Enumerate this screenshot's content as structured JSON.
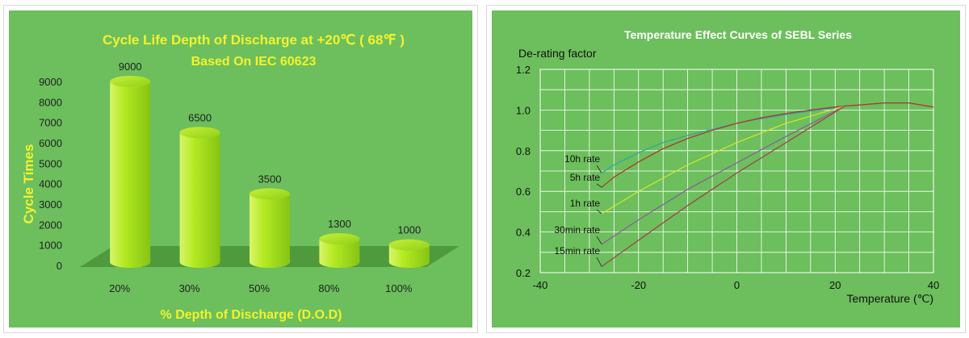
{
  "colors": {
    "panel_bg": "#6cbf5c",
    "left_title": "#f2f230",
    "right_title": "#ffffff",
    "bar": "#a4e01c",
    "floor": "#4f9a3c",
    "text": "#222222"
  },
  "chart_data": [
    {
      "type": "bar",
      "title": "Cycle Life Depth of Discharge at +20℃ ( 68℉ )",
      "subtitle": "Based On IEC 60623",
      "xlabel": "% Depth of Discharge (D.O.D)",
      "ylabel": "Cycle Times",
      "categories": [
        "20%",
        "30%",
        "50%",
        "80%",
        "100%"
      ],
      "values": [
        9000,
        6500,
        3500,
        1300,
        1000
      ],
      "value_labels": [
        "9000",
        "6500",
        "3500",
        "1300",
        "1000"
      ],
      "ylim": [
        0,
        9000
      ],
      "yticks": [
        0,
        1000,
        2000,
        3000,
        4000,
        5000,
        6000,
        7000,
        8000,
        9000
      ],
      "ytick_labels": [
        "0",
        "1000",
        "2000",
        "3000",
        "4000",
        "5000",
        "6000",
        "7000",
        "8000",
        "9000"
      ],
      "style": "3d-cylinder",
      "grid": false,
      "legend": "none"
    },
    {
      "type": "line",
      "title": "Temperature Effect Curves of SEBL Series",
      "xlabel": "Temperature (℃)",
      "ylabel": "De-rating factor",
      "xlim": [
        -40,
        40
      ],
      "ylim": [
        0.2,
        1.2
      ],
      "xticks": [
        -40,
        -20,
        0,
        20,
        40
      ],
      "xtick_labels": [
        "-40",
        "-20",
        "0",
        "20",
        "40"
      ],
      "yticks": [
        0.2,
        0.4,
        0.6,
        0.8,
        1.0,
        1.2
      ],
      "ytick_labels": [
        "0.2",
        "0.4",
        "0.6",
        "0.8",
        "1.0",
        "1.2"
      ],
      "grid": true,
      "legend": "inline-labels-left",
      "series": [
        {
          "name": "10h rate",
          "color": "#2aa6a6",
          "x": [
            -27.5,
            -25,
            -20,
            -15,
            -10,
            -5,
            0,
            5,
            10,
            15,
            20
          ],
          "y": [
            0.69,
            0.73,
            0.79,
            0.84,
            0.875,
            0.905,
            0.935,
            0.958,
            0.978,
            0.995,
            1.01
          ]
        },
        {
          "name": "5h rate",
          "color": "#b03030",
          "x": [
            -27.5,
            -25,
            -20,
            -15,
            -10,
            -5,
            0,
            5,
            10,
            15,
            20,
            22,
            25,
            30,
            35,
            40
          ],
          "y": [
            0.62,
            0.67,
            0.745,
            0.81,
            0.86,
            0.9,
            0.935,
            0.962,
            0.983,
            1.0,
            1.015,
            1.02,
            1.025,
            1.035,
            1.035,
            1.015
          ]
        },
        {
          "name": "1h rate",
          "color": "#d6e62a",
          "x": [
            -27.5,
            -20,
            -10,
            0,
            10,
            20,
            22
          ],
          "y": [
            0.49,
            0.6,
            0.73,
            0.84,
            0.935,
            1.005,
            1.02
          ]
        },
        {
          "name": "30min rate",
          "color": "#8a5aa0",
          "x": [
            -27.5,
            -20,
            -10,
            0,
            10,
            20,
            22
          ],
          "y": [
            0.34,
            0.46,
            0.61,
            0.74,
            0.87,
            0.995,
            1.02
          ]
        },
        {
          "name": "15min rate",
          "color": "#a23c4a",
          "x": [
            -27.5,
            -20,
            -10,
            0,
            10,
            20,
            22
          ],
          "y": [
            0.23,
            0.36,
            0.53,
            0.69,
            0.84,
            0.99,
            1.02
          ]
        }
      ]
    }
  ]
}
